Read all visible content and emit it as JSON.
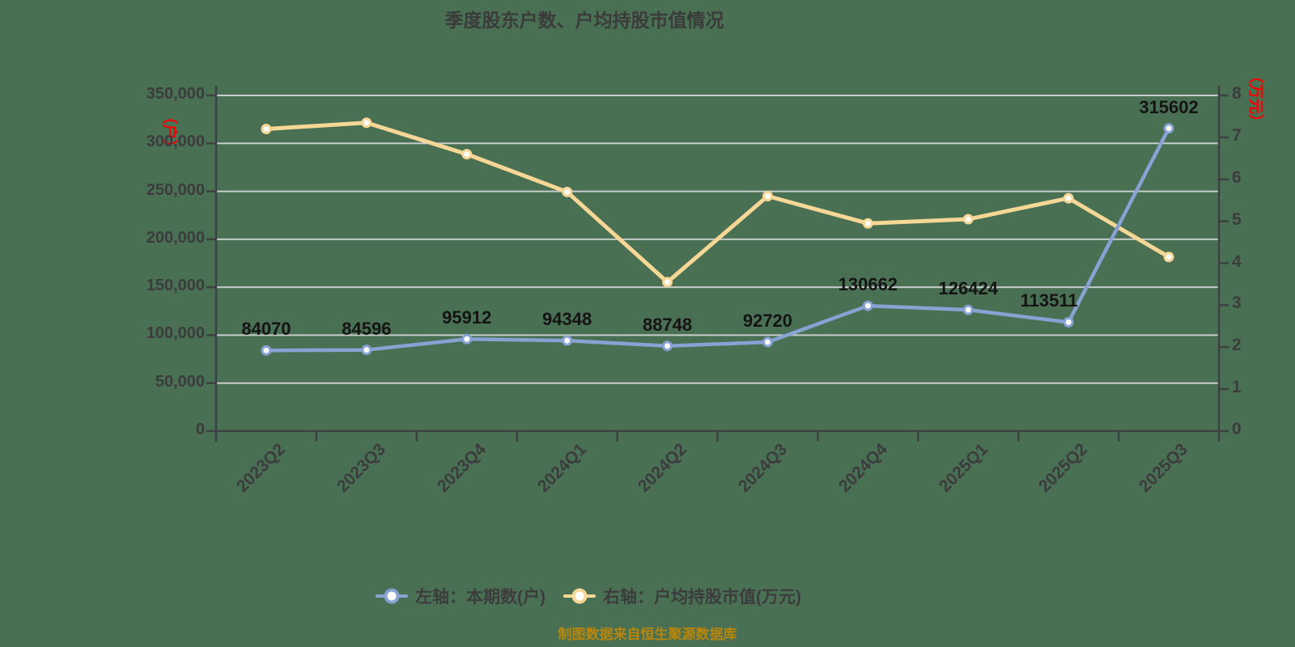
{
  "source_note": "制图数据来自恒生聚源数据库",
  "colors": {
    "background": "#4A7054",
    "gridline": "#C8CCCA",
    "axis": "#3E4044",
    "tick_text": "#3C3C3E",
    "title_text": "#3B3B3B",
    "data_label_text": "#141414",
    "unit_label_red": "#F80000",
    "source_text": "#B8860B",
    "series_blue": "#87A2D3",
    "series_yellow": "#F6D795",
    "marker_fill": "#FFFFFF"
  },
  "chart_data": {
    "type": "line",
    "title": "季度股东户数、户均持股市值情况",
    "categories": [
      "2023Q2",
      "2023Q3",
      "2023Q4",
      "2024Q1",
      "2024Q2",
      "2024Q3",
      "2024Q4",
      "2025Q1",
      "2025Q2",
      "2025Q3"
    ],
    "series": [
      {
        "name": "左轴：本期数(户)",
        "axis": "left",
        "color": "#87A2D3",
        "marker_fill": "#FFFFFF",
        "show_data_labels": true,
        "values": [
          84070,
          84596,
          95912,
          94348,
          88748,
          92720,
          130662,
          126424,
          113511,
          315602
        ]
      },
      {
        "name": "右轴：户均持股市值(万元)",
        "axis": "right",
        "color": "#F6D795",
        "marker_fill": "#FFFFFF",
        "show_data_labels": false,
        "values": [
          7.2,
          7.35,
          6.6,
          5.7,
          3.55,
          5.6,
          4.95,
          5.05,
          5.55,
          4.15
        ]
      }
    ],
    "left_axis": {
      "unit": "（户）",
      "min": 0,
      "max": 350000,
      "tick_step": 50000,
      "tick_labels": [
        "0",
        "50,000",
        "100,000",
        "150,000",
        "200,000",
        "250,000",
        "300,000",
        "350,000"
      ]
    },
    "right_axis": {
      "unit": "（万元）",
      "min": 0,
      "max": 8,
      "tick_step": 1,
      "tick_labels": [
        "0",
        "1",
        "2",
        "3",
        "4",
        "5",
        "6",
        "7",
        "8"
      ]
    },
    "grid": true,
    "legend_position": "bottom"
  }
}
